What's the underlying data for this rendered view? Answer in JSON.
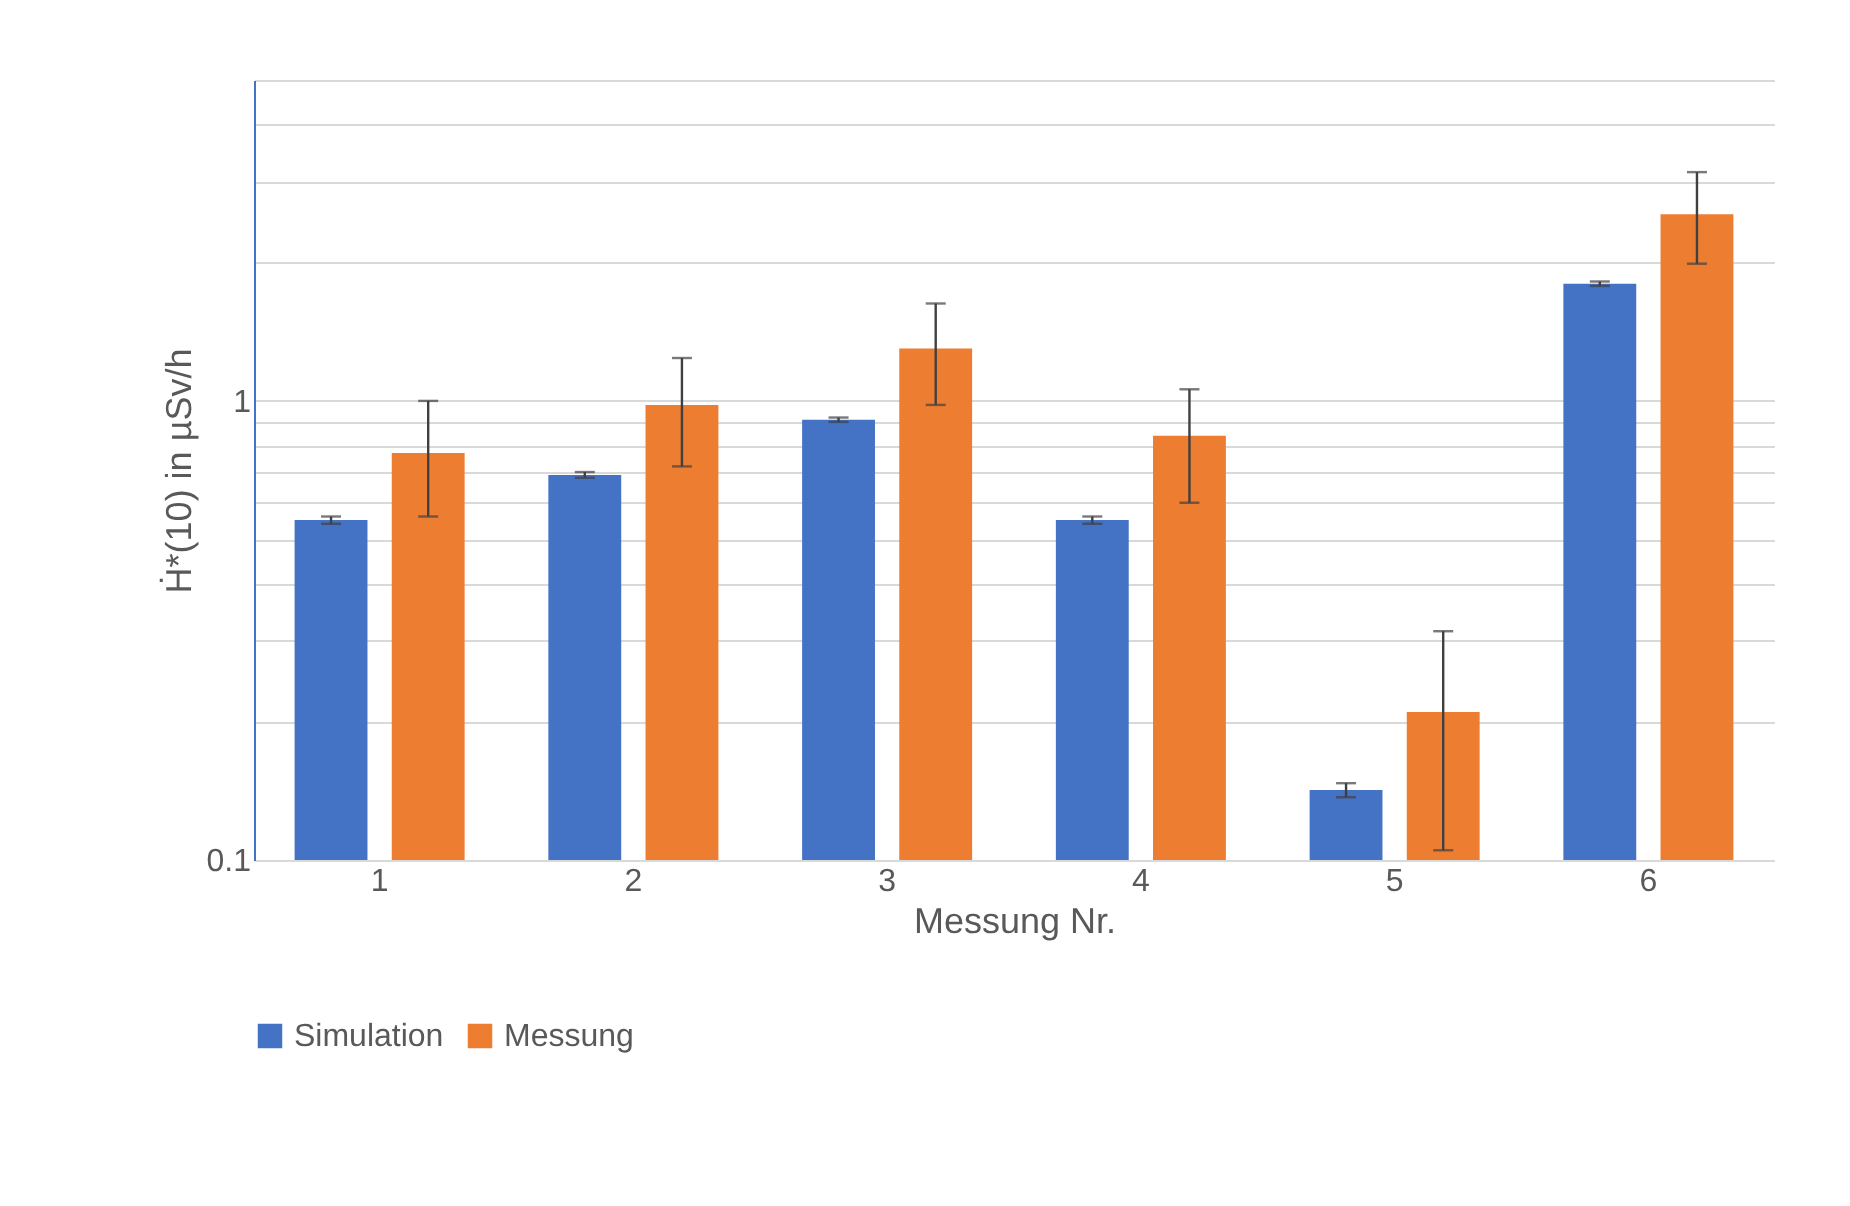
{
  "chart_data": {
    "type": "bar",
    "xlabel": "Messung Nr.",
    "ylabel": "Ḣ*(10) in µSv/h",
    "categories": [
      "1",
      "2",
      "3",
      "4",
      "5",
      "6"
    ],
    "series": [
      {
        "name": "Simulation",
        "color": "#4472c4",
        "values": [
          0.55,
          0.69,
          0.91,
          0.55,
          0.142,
          1.8
        ],
        "errors": [
          0.01,
          0.01,
          0.01,
          0.01,
          0.005,
          0.02
        ]
      },
      {
        "name": "Messung",
        "color": "#ed7d31",
        "values": [
          0.77,
          0.98,
          1.3,
          0.84,
          0.21,
          2.55
        ],
        "errors": [
          [
            0.56,
            1.0
          ],
          [
            0.72,
            1.24
          ],
          [
            0.98,
            1.63
          ],
          [
            0.6,
            1.06
          ],
          [
            0.105,
            0.315
          ],
          [
            1.99,
            3.15
          ]
        ]
      }
    ],
    "log": "y",
    "ylim": [
      0.1,
      5
    ],
    "yticks": [
      0.1,
      {
        "value": 0.2,
        "label": null
      },
      {
        "value": 0.3,
        "label": null
      },
      {
        "value": 0.4,
        "label": null
      },
      {
        "value": 0.5,
        "label": null
      },
      {
        "value": 0.6,
        "label": null
      },
      {
        "value": 0.7,
        "label": null
      },
      {
        "value": 0.8,
        "label": null
      },
      {
        "value": 0.9,
        "label": null
      },
      1,
      {
        "value": 2,
        "label": null
      },
      {
        "value": 3,
        "label": null
      },
      {
        "value": 4,
        "label": null
      },
      {
        "value": 5,
        "label": null
      }
    ],
    "grid": true,
    "legend": "bottom"
  }
}
